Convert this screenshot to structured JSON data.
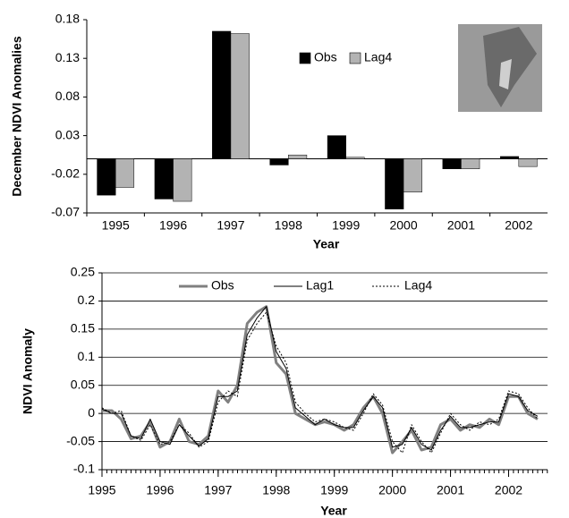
{
  "chart_data": [
    {
      "type": "bar",
      "y_label": "December NDVI Anomalies",
      "x_label": "Year",
      "categories": [
        "1995",
        "1996",
        "1997",
        "1998",
        "1999",
        "2000",
        "2001",
        "2002"
      ],
      "series": [
        {
          "name": "Obs",
          "color": "#000000",
          "values": [
            -0.047,
            -0.052,
            0.165,
            -0.008,
            0.03,
            -0.065,
            -0.013,
            0.003
          ]
        },
        {
          "name": "Lag4",
          "color": "#b3b3b3",
          "values": [
            -0.037,
            -0.055,
            0.162,
            0.005,
            0.002,
            -0.043,
            -0.013,
            -0.01
          ]
        }
      ],
      "ylim": [
        -0.07,
        0.18
      ],
      "yticks": [
        -0.07,
        -0.02,
        0.03,
        0.08,
        0.13,
        0.18
      ],
      "grid": false,
      "legend": "top"
    },
    {
      "type": "line",
      "y_label": "NDVI Anomaly",
      "x_label": "Year",
      "x": [
        1995.0,
        1995.17,
        1995.33,
        1995.5,
        1995.67,
        1995.83,
        1996.0,
        1996.17,
        1996.33,
        1996.5,
        1996.67,
        1996.83,
        1997.0,
        1997.17,
        1997.33,
        1997.5,
        1997.67,
        1997.83,
        1998.0,
        1998.17,
        1998.33,
        1998.5,
        1998.67,
        1998.83,
        1999.0,
        1999.17,
        1999.33,
        1999.5,
        1999.67,
        1999.83,
        2000.0,
        2000.17,
        2000.33,
        2000.5,
        2000.67,
        2000.83,
        2001.0,
        2001.17,
        2001.33,
        2001.5,
        2001.67,
        2001.83,
        2002.0,
        2002.17,
        2002.33,
        2002.5
      ],
      "series": [
        {
          "name": "Obs",
          "color": "#808080",
          "width": 3,
          "dash": "solid",
          "values": [
            0.005,
            0.005,
            -0.01,
            -0.045,
            -0.04,
            -0.015,
            -0.06,
            -0.05,
            -0.01,
            -0.05,
            -0.055,
            -0.04,
            0.04,
            0.02,
            0.05,
            0.16,
            0.18,
            0.19,
            0.09,
            0.07,
            0.0,
            -0.01,
            -0.02,
            -0.015,
            -0.02,
            -0.03,
            -0.02,
            0.01,
            0.03,
            0.0,
            -0.07,
            -0.05,
            -0.03,
            -0.065,
            -0.06,
            -0.02,
            -0.01,
            -0.03,
            -0.02,
            -0.025,
            -0.01,
            -0.02,
            0.03,
            0.03,
            0.0,
            -0.01
          ]
        },
        {
          "name": "Lag1",
          "color": "#000000",
          "width": 1,
          "dash": "solid",
          "values": [
            0.008,
            0.0,
            0.0,
            -0.04,
            -0.045,
            -0.01,
            -0.05,
            -0.055,
            -0.02,
            -0.04,
            -0.058,
            -0.045,
            0.03,
            0.03,
            0.04,
            0.14,
            0.17,
            0.19,
            0.11,
            0.08,
            0.01,
            -0.005,
            -0.02,
            -0.01,
            -0.02,
            -0.025,
            -0.025,
            0.005,
            0.03,
            0.01,
            -0.06,
            -0.055,
            -0.025,
            -0.055,
            -0.065,
            -0.03,
            -0.005,
            -0.025,
            -0.025,
            -0.02,
            -0.015,
            -0.015,
            0.035,
            0.03,
            0.005,
            -0.005
          ]
        },
        {
          "name": "Lag4",
          "color": "#000000",
          "width": 1,
          "dash": "dotted",
          "values": [
            0.01,
            0.0,
            0.005,
            -0.04,
            -0.048,
            -0.02,
            -0.055,
            -0.05,
            -0.02,
            -0.035,
            -0.06,
            -0.05,
            0.02,
            0.04,
            0.03,
            0.13,
            0.16,
            0.18,
            0.12,
            0.09,
            0.02,
            0.0,
            -0.015,
            -0.01,
            -0.015,
            -0.025,
            -0.03,
            0.0,
            0.035,
            0.015,
            -0.05,
            -0.07,
            -0.02,
            -0.05,
            -0.07,
            -0.035,
            0.0,
            -0.02,
            -0.03,
            -0.015,
            -0.02,
            -0.01,
            0.04,
            0.035,
            0.01,
            -0.01
          ]
        }
      ],
      "xlim": [
        1995,
        2002.67
      ],
      "xticks": [
        1995,
        1996,
        1997,
        1998,
        1999,
        2000,
        2001,
        2002
      ],
      "ylim": [
        -0.1,
        0.25
      ],
      "yticks": [
        -0.1,
        -0.05,
        0,
        0.05,
        0.1,
        0.15,
        0.2,
        0.25
      ],
      "grid": true,
      "legend": "top"
    }
  ]
}
